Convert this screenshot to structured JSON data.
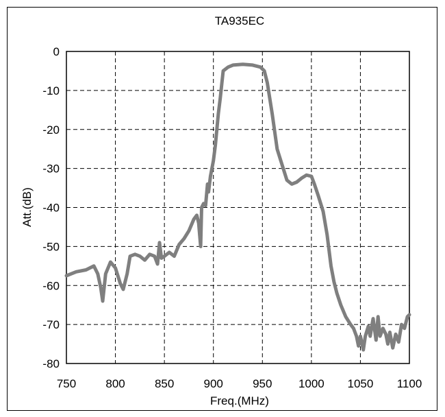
{
  "chart_data": {
    "type": "line",
    "title": "TA935EC",
    "xlabel": "Freq.(MHz)",
    "ylabel": "Att.(dB)",
    "xlim": [
      750,
      1100
    ],
    "ylim": [
      -80,
      0
    ],
    "xticks": [
      750,
      800,
      850,
      900,
      950,
      1000,
      1050,
      1100
    ],
    "yticks": [
      0,
      -10,
      -20,
      -30,
      -40,
      -50,
      -60,
      -70,
      -80
    ],
    "grid": true,
    "line_color": "#7f7f7f",
    "series": [
      {
        "x": [
          750,
          760,
          770,
          778,
          782,
          785,
          787,
          790,
          795,
          800,
          805,
          808,
          812,
          815,
          820,
          825,
          830,
          835,
          840,
          843,
          845,
          847,
          850,
          855,
          860,
          865,
          870,
          875,
          880,
          883,
          885,
          887,
          888,
          890,
          892,
          894,
          895,
          897,
          900,
          902,
          905,
          907,
          910,
          915,
          920,
          930,
          940,
          948,
          952,
          955,
          960,
          965,
          970,
          975,
          980,
          985,
          990,
          995,
          1000,
          1003,
          1007,
          1012,
          1016,
          1020,
          1023,
          1026,
          1030,
          1035,
          1040,
          1043,
          1046,
          1048,
          1050,
          1053,
          1055,
          1058,
          1060,
          1063,
          1066,
          1068,
          1070,
          1073,
          1076,
          1078,
          1080,
          1083,
          1086,
          1089,
          1092,
          1095,
          1098,
          1100
        ],
        "y": [
          -57.5,
          -56.5,
          -56,
          -55,
          -57,
          -60.5,
          -64,
          -57,
          -54,
          -55.5,
          -59.5,
          -61,
          -57,
          -52.5,
          -52,
          -52.5,
          -53.5,
          -52,
          -52.5,
          -54.5,
          -49,
          -53,
          -52.5,
          -51.5,
          -52.5,
          -49.5,
          -48,
          -46,
          -43,
          -42,
          -44,
          -50,
          -40,
          -39,
          -39.5,
          -34,
          -36,
          -32,
          -28,
          -24,
          -16,
          -12,
          -5,
          -4,
          -3.5,
          -3.3,
          -3.5,
          -4,
          -5,
          -8,
          -16,
          -25,
          -29,
          -33,
          -34,
          -33.5,
          -32.5,
          -31.7,
          -32,
          -34,
          -37,
          -41,
          -47,
          -55,
          -59,
          -62,
          -65,
          -68,
          -70,
          -71,
          -73,
          -75.5,
          -73,
          -76.5,
          -73,
          -70.5,
          -73,
          -68.5,
          -74,
          -68,
          -73,
          -71,
          -72.5,
          -75,
          -72,
          -76,
          -72.5,
          -74.5,
          -70,
          -71,
          -68,
          -67.5
        ]
      }
    ]
  }
}
